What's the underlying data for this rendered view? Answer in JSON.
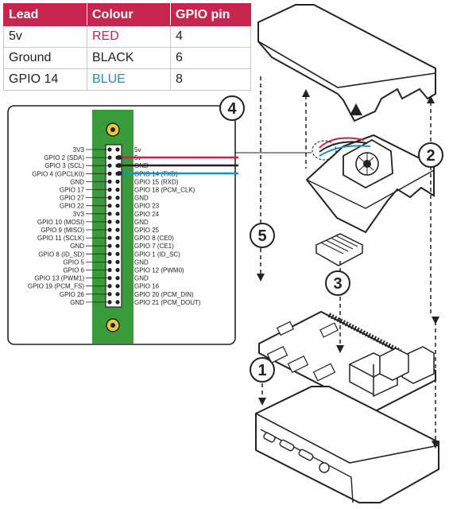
{
  "table": {
    "headers": [
      "Lead",
      "Colour",
      "GPIO pin"
    ],
    "rows": [
      {
        "lead": "5v",
        "colour": "RED",
        "pin": "4"
      },
      {
        "lead": "Ground",
        "colour": "BLACK",
        "pin": "6"
      },
      {
        "lead": "GPIO 14",
        "colour": "BLUE",
        "pin": "8"
      }
    ],
    "colour_hex": {
      "red": "#c7254e",
      "black": "#222222",
      "blue": "#1c8fc9"
    },
    "header_bg": "#c7254e"
  },
  "pinout": {
    "left_labels": [
      "3V3",
      "GPIO 2 (SDA)",
      "GPIO 3 (SCL)",
      "GPIO 4 (GPCLK0)",
      "GND",
      "GPIO 17",
      "GPIO 27",
      "GPIO 22",
      "3V3",
      "GPIO 10 (MOSI)",
      "GPIO 9 (MISO)",
      "GPIO 11 (SCLK)",
      "GND",
      "GPIO 8 (ID_SD)",
      "GPIO 5",
      "GPIO 6",
      "GPIO 13 (PWM1)",
      "GPIO 19 (PCM_FS)",
      "GPIO 26",
      "GND"
    ],
    "right_labels": [
      "5v",
      "5v",
      "GND",
      "GPIO 14 (TXD)",
      "GPIO 15 (RXD)",
      "GPIO 18 (PCM_CLK)",
      "GND",
      "GPIO 23",
      "GPIO 24",
      "GND",
      "GPIO 25",
      "GPIO 8 (CE0)",
      "GPIO 7 (CE1)",
      "GPIO 1 (ID_SC)",
      "GND",
      "GPIO 12 (PWM0)",
      "GND",
      "GPIO 16",
      "GPIO 20 (PCM_DIN)",
      "GPIO 21 (PCM_DOUT)"
    ],
    "board_color": "#3a9b3a",
    "hole_color": "#e8c93a"
  },
  "steps": [
    "1",
    "2",
    "3",
    "4",
    "5"
  ]
}
